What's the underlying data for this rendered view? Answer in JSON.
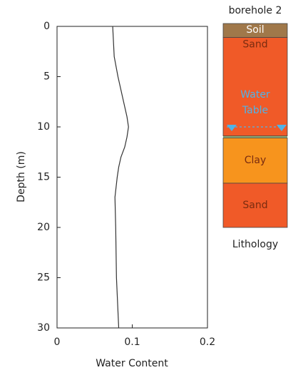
{
  "chart_data": [
    {
      "type": "line",
      "xlabel": "Water Content",
      "ylabel": "Depth (m)",
      "depth": [
        0,
        3,
        5,
        7,
        9,
        10,
        11,
        12,
        13,
        14,
        15,
        17,
        20,
        25,
        30
      ],
      "values": [
        0.074,
        0.076,
        0.081,
        0.087,
        0.093,
        0.095,
        0.093,
        0.09,
        0.085,
        0.082,
        0.08,
        0.077,
        0.078,
        0.079,
        0.082
      ],
      "color": "#333333",
      "xlim": [
        0,
        0.2
      ],
      "xticks": [
        0,
        0.1,
        0.2
      ],
      "ylim": [
        0,
        30
      ],
      "yticks": [
        0,
        5,
        10,
        15,
        20,
        25,
        30
      ],
      "y_inverted": true
    },
    {
      "type": "lithology",
      "title": "borehole 2",
      "label": "Lithology",
      "ylim": [
        0,
        30
      ],
      "layers": [
        {
          "name": "Soil",
          "top": 0,
          "bottom": 1.1,
          "color": "#a0784a"
        },
        {
          "name": "Sand",
          "top": 1.1,
          "bottom": 10.9,
          "color": "#f05a28"
        },
        {
          "name": "Clay",
          "top": 11.1,
          "bottom": 15.6,
          "color": "#f7941d"
        },
        {
          "name": "Sand",
          "top": 15.6,
          "bottom": 20,
          "color": "#f05a28"
        }
      ],
      "water_table": {
        "label": [
          "Water",
          "Table"
        ],
        "depth": 10,
        "color": "#4fb3e8"
      }
    }
  ]
}
